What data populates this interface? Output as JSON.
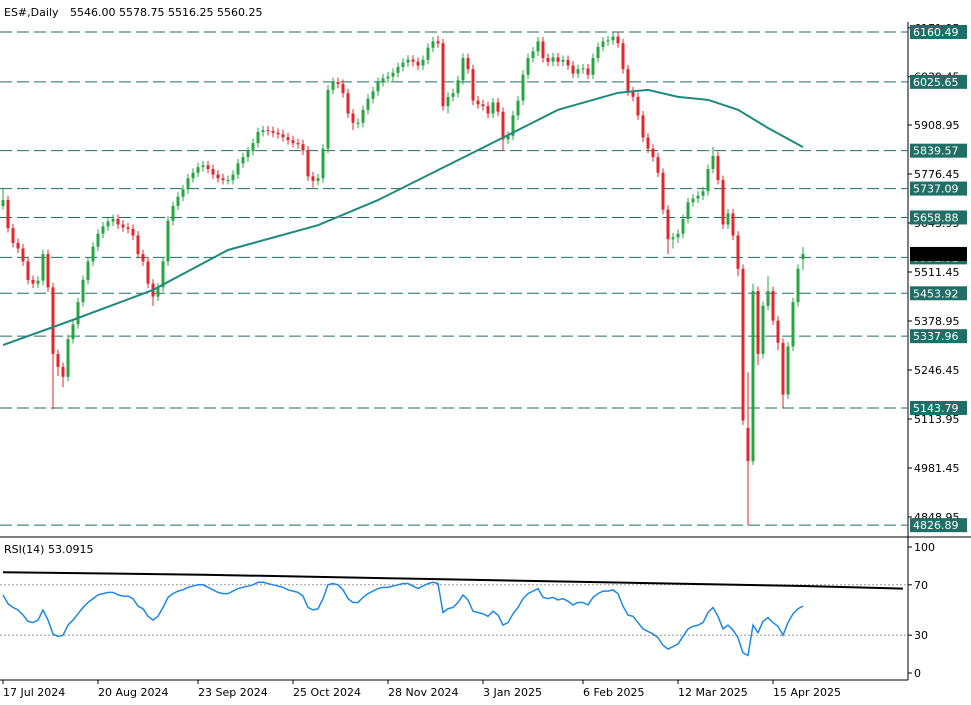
{
  "chart_data": {
    "type": "candlestick",
    "title": "ES#,Daily",
    "header_labels": [
      "5546.00",
      "5578.75",
      "5516.25",
      "5560.25"
    ],
    "categories": [
      "17 Jul 2024",
      null,
      null,
      null,
      null,
      null,
      null,
      null,
      null,
      null,
      null,
      null,
      null,
      null,
      null,
      null,
      null,
      null,
      null,
      "20 Aug 2024",
      null,
      null,
      null,
      null,
      null,
      null,
      null,
      null,
      null,
      null,
      null,
      null,
      null,
      null,
      null,
      null,
      null,
      null,
      null,
      "23 Sep 2024",
      null,
      null,
      null,
      null,
      null,
      null,
      null,
      null,
      null,
      null,
      null,
      null,
      null,
      null,
      null,
      null,
      null,
      null,
      "25 Oct 2024",
      null,
      null,
      null,
      null,
      null,
      null,
      null,
      null,
      null,
      null,
      null,
      null,
      null,
      null,
      null,
      null,
      null,
      null,
      "28 Nov 2024",
      null,
      null,
      null,
      null,
      null,
      null,
      null,
      null,
      null,
      null,
      null,
      null,
      null,
      null,
      null,
      null,
      null,
      null,
      "3 Jan 2025",
      null,
      null,
      null,
      null,
      null,
      null,
      null,
      null,
      null,
      null,
      null,
      null,
      null,
      null,
      null,
      null,
      null,
      null,
      null,
      "6 Feb 2025",
      null,
      null,
      null,
      null,
      null,
      null,
      null,
      null,
      null,
      null,
      null,
      null,
      null,
      null,
      null,
      null,
      null,
      null,
      "12 Mar 2025",
      null,
      null,
      null,
      null,
      null,
      null,
      null,
      null,
      null,
      null,
      null,
      null,
      null,
      null,
      null,
      null,
      null,
      null,
      "15 Apr 2025",
      null,
      null,
      null,
      null,
      null,
      null
    ],
    "candles": [
      [
        5690,
        5740,
        5680,
        5706
      ],
      [
        5706,
        5718,
        5618,
        5630
      ],
      [
        5630,
        5642,
        5578,
        5590
      ],
      [
        5590,
        5602,
        5563,
        5575
      ],
      [
        5575,
        5587,
        5528,
        5540
      ],
      [
        5540,
        5552,
        5478,
        5490
      ],
      [
        5490,
        5502,
        5468,
        5480
      ],
      [
        5480,
        5500,
        5468,
        5488
      ],
      [
        5488,
        5572,
        5476,
        5560
      ],
      [
        5560,
        5572,
        5458,
        5470
      ],
      [
        5470,
        5482,
        5140,
        5290
      ],
      [
        5290,
        5302,
        5230,
        5255
      ],
      [
        5255,
        5267,
        5200,
        5228
      ],
      [
        5228,
        5342,
        5216,
        5330
      ],
      [
        5330,
        5382,
        5318,
        5370
      ],
      [
        5370,
        5442,
        5358,
        5430
      ],
      [
        5430,
        5502,
        5418,
        5490
      ],
      [
        5490,
        5552,
        5478,
        5540
      ],
      [
        5540,
        5592,
        5528,
        5580
      ],
      [
        5580,
        5627,
        5568,
        5615
      ],
      [
        5615,
        5647,
        5603,
        5635
      ],
      [
        5635,
        5660,
        5623,
        5648
      ],
      [
        5648,
        5667,
        5636,
        5655
      ],
      [
        5655,
        5667,
        5628,
        5640
      ],
      [
        5640,
        5652,
        5620,
        5632
      ],
      [
        5632,
        5644,
        5616,
        5628
      ],
      [
        5628,
        5640,
        5598,
        5610
      ],
      [
        5610,
        5622,
        5548,
        5560
      ],
      [
        5560,
        5572,
        5528,
        5540
      ],
      [
        5540,
        5552,
        5468,
        5480
      ],
      [
        5480,
        5492,
        5420,
        5445
      ],
      [
        5445,
        5482,
        5433,
        5470
      ],
      [
        5470,
        5552,
        5458,
        5540
      ],
      [
        5540,
        5662,
        5528,
        5650
      ],
      [
        5650,
        5702,
        5638,
        5690
      ],
      [
        5690,
        5727,
        5678,
        5715
      ],
      [
        5715,
        5747,
        5703,
        5735
      ],
      [
        5735,
        5777,
        5723,
        5765
      ],
      [
        5765,
        5792,
        5753,
        5780
      ],
      [
        5780,
        5807,
        5768,
        5795
      ],
      [
        5795,
        5812,
        5783,
        5800
      ],
      [
        5800,
        5812,
        5778,
        5790
      ],
      [
        5790,
        5802,
        5763,
        5775
      ],
      [
        5775,
        5787,
        5753,
        5765
      ],
      [
        5765,
        5777,
        5748,
        5760
      ],
      [
        5758,
        5772,
        5748,
        5760
      ],
      [
        5760,
        5787,
        5748,
        5775
      ],
      [
        5775,
        5817,
        5763,
        5805
      ],
      [
        5805,
        5834,
        5793,
        5822
      ],
      [
        5822,
        5850,
        5810,
        5838
      ],
      [
        5838,
        5872,
        5826,
        5860
      ],
      [
        5860,
        5902,
        5848,
        5890
      ],
      [
        5890,
        5907,
        5878,
        5895
      ],
      [
        5895,
        5907,
        5881,
        5893
      ],
      [
        5893,
        5905,
        5876,
        5888
      ],
      [
        5888,
        5900,
        5872,
        5884
      ],
      [
        5884,
        5896,
        5864,
        5876
      ],
      [
        5876,
        5888,
        5856,
        5868
      ],
      [
        5868,
        5880,
        5848,
        5860
      ],
      [
        5860,
        5872,
        5845,
        5857
      ],
      [
        5857,
        5869,
        5828,
        5840
      ],
      [
        5840,
        5852,
        5758,
        5770
      ],
      [
        5770,
        5782,
        5740,
        5758
      ],
      [
        5758,
        5777,
        5746,
        5765
      ],
      [
        5765,
        5857,
        5753,
        5845
      ],
      [
        5845,
        6016,
        5833,
        6004
      ],
      [
        6004,
        6037,
        5992,
        6025
      ],
      [
        6025,
        6037,
        6008,
        6020
      ],
      [
        6020,
        6032,
        5983,
        5995
      ],
      [
        5995,
        6007,
        5928,
        5940
      ],
      [
        5940,
        5952,
        5895,
        5915
      ],
      [
        5912,
        5927,
        5900,
        5915
      ],
      [
        5915,
        5962,
        5903,
        5950
      ],
      [
        5950,
        5992,
        5938,
        5980
      ],
      [
        5980,
        6012,
        5968,
        6000
      ],
      [
        6000,
        6037,
        5988,
        6025
      ],
      [
        6025,
        6047,
        6013,
        6035
      ],
      [
        6035,
        6052,
        6023,
        6040
      ],
      [
        6040,
        6062,
        6028,
        6050
      ],
      [
        6050,
        6078,
        6038,
        6066
      ],
      [
        6066,
        6090,
        6054,
        6078
      ],
      [
        6078,
        6098,
        6066,
        6086
      ],
      [
        6086,
        6098,
        6068,
        6080
      ],
      [
        6080,
        6092,
        6058,
        6070
      ],
      [
        6070,
        6097,
        6058,
        6085
      ],
      [
        6085,
        6130,
        6073,
        6118
      ],
      [
        6118,
        6147,
        6106,
        6135
      ],
      [
        6135,
        6150,
        6118,
        6130
      ],
      [
        6130,
        6142,
        5948,
        5960
      ],
      [
        5960,
        5997,
        5940,
        5985
      ],
      [
        5985,
        6007,
        5973,
        5995
      ],
      [
        5995,
        6042,
        5983,
        6030
      ],
      [
        6030,
        6102,
        6018,
        6090
      ],
      [
        6090,
        6102,
        6048,
        6060
      ],
      [
        6060,
        6072,
        5963,
        5975
      ],
      [
        5975,
        5987,
        5953,
        5965
      ],
      [
        5965,
        5977,
        5948,
        5960
      ],
      [
        5960,
        5972,
        5928,
        5940
      ],
      [
        5940,
        5982,
        5928,
        5970
      ],
      [
        5970,
        5982,
        5933,
        5945
      ],
      [
        5945,
        5957,
        5840,
        5870
      ],
      [
        5870,
        5892,
        5858,
        5880
      ],
      [
        5880,
        5947,
        5868,
        5935
      ],
      [
        5935,
        5987,
        5923,
        5975
      ],
      [
        5975,
        6057,
        5963,
        6045
      ],
      [
        6045,
        6102,
        6033,
        6090
      ],
      [
        6090,
        6120,
        6078,
        6108
      ],
      [
        6108,
        6147,
        6096,
        6135
      ],
      [
        6135,
        6147,
        6078,
        6090
      ],
      [
        6090,
        6102,
        6068,
        6080
      ],
      [
        6080,
        6104,
        6068,
        6092
      ],
      [
        6092,
        6104,
        6068,
        6080
      ],
      [
        6080,
        6097,
        6068,
        6085
      ],
      [
        6085,
        6097,
        6058,
        6070
      ],
      [
        6070,
        6082,
        6036,
        6048
      ],
      [
        6048,
        6072,
        6036,
        6060
      ],
      [
        6060,
        6074,
        6048,
        6062
      ],
      [
        6062,
        6074,
        6033,
        6045
      ],
      [
        6045,
        6102,
        6033,
        6090
      ],
      [
        6090,
        6132,
        6078,
        6120
      ],
      [
        6120,
        6147,
        6108,
        6135
      ],
      [
        6135,
        6150,
        6123,
        6138
      ],
      [
        6138,
        6160,
        6126,
        6148
      ],
      [
        6148,
        6160,
        6118,
        6130
      ],
      [
        6130,
        6142,
        6048,
        6060
      ],
      [
        6060,
        6072,
        5988,
        6000
      ],
      [
        6000,
        6012,
        5973,
        5985
      ],
      [
        5985,
        5997,
        5923,
        5935
      ],
      [
        5935,
        5947,
        5863,
        5875
      ],
      [
        5875,
        5887,
        5833,
        5845
      ],
      [
        5845,
        5857,
        5810,
        5822
      ],
      [
        5822,
        5834,
        5768,
        5780
      ],
      [
        5780,
        5792,
        5668,
        5680
      ],
      [
        5680,
        5692,
        5560,
        5600
      ],
      [
        5600,
        5617,
        5575,
        5605
      ],
      [
        5605,
        5627,
        5590,
        5615
      ],
      [
        5615,
        5667,
        5603,
        5655
      ],
      [
        5655,
        5712,
        5643,
        5700
      ],
      [
        5700,
        5722,
        5688,
        5710
      ],
      [
        5710,
        5730,
        5698,
        5718
      ],
      [
        5718,
        5742,
        5706,
        5730
      ],
      [
        5730,
        5802,
        5718,
        5790
      ],
      [
        5790,
        5850,
        5778,
        5825
      ],
      [
        5825,
        5837,
        5748,
        5760
      ],
      [
        5760,
        5772,
        5628,
        5640
      ],
      [
        5640,
        5682,
        5628,
        5670
      ],
      [
        5670,
        5682,
        5598,
        5610
      ],
      [
        5610,
        5622,
        5500,
        5520
      ],
      [
        5520,
        5532,
        5098,
        5110
      ],
      [
        5090,
        5240,
        4827,
        5000
      ],
      [
        5000,
        5480,
        4990,
        5460
      ],
      [
        5460,
        5472,
        5260,
        5290
      ],
      [
        5290,
        5432,
        5278,
        5420
      ],
      [
        5420,
        5500,
        5408,
        5460
      ],
      [
        5460,
        5472,
        5368,
        5380
      ],
      [
        5380,
        5392,
        5300,
        5320
      ],
      [
        5320,
        5332,
        5143,
        5180
      ],
      [
        5180,
        5322,
        5168,
        5310
      ],
      [
        5310,
        5442,
        5298,
        5430
      ],
      [
        5430,
        5532,
        5418,
        5520
      ],
      [
        5546,
        5578.75,
        5516.25,
        5560.25
      ]
    ],
    "up_color": "#26a641",
    "down_color": "#e3262b",
    "ylim": [
      4813.8,
      6187.5
    ],
    "yticks": [
      6171.95,
      6039.45,
      5908.95,
      5776.45,
      5643.95,
      5511.45,
      5378.95,
      5246.45,
      5113.95,
      4981.45,
      4848.95
    ],
    "levels": [
      6160.49,
      6025.65,
      5839.57,
      5737.09,
      5658.88,
      5551.01,
      5453.92,
      5337.96,
      5143.79,
      4826.89
    ],
    "level_color": "#1f6f66",
    "ma": {
      "color": "#1d8a80",
      "x": [
        0,
        14,
        30,
        45,
        63,
        75,
        87,
        99,
        111,
        123,
        129,
        135,
        141,
        147,
        153,
        160
      ],
      "values": [
        5314,
        5382,
        5463,
        5571,
        5638,
        5706,
        5787,
        5868,
        5950,
        5996,
        6004,
        5985,
        5977,
        5950,
        5901,
        5849
      ]
    },
    "rsi": {
      "title": "RSI(14)",
      "value": 53.0915,
      "color": "#1e88e5",
      "ylim": [
        0,
        100
      ],
      "yticks": [
        0,
        30,
        70,
        100
      ],
      "levels": [
        30,
        70
      ],
      "values": [
        62,
        55,
        52,
        50,
        46,
        41,
        40,
        42,
        50,
        42,
        31,
        29,
        30,
        38,
        42,
        47,
        52,
        56,
        59,
        62,
        63,
        64,
        64,
        62,
        61,
        61,
        59,
        53,
        51,
        45,
        42,
        45,
        52,
        60,
        63,
        65,
        66,
        68,
        69,
        70,
        70,
        68,
        66,
        64,
        63,
        63,
        65,
        67,
        68,
        69,
        70,
        72,
        72,
        71,
        70,
        69,
        68,
        66,
        65,
        64,
        61,
        52,
        50,
        51,
        59,
        70,
        71,
        70,
        66,
        59,
        56,
        56,
        60,
        63,
        65,
        67,
        68,
        68,
        69,
        70,
        71,
        71,
        69,
        67,
        69,
        71,
        72,
        71,
        48,
        51,
        52,
        56,
        62,
        58,
        49,
        48,
        47,
        45,
        49,
        46,
        38,
        40,
        47,
        52,
        59,
        63,
        65,
        67,
        60,
        59,
        60,
        58,
        59,
        57,
        54,
        56,
        56,
        54,
        60,
        63,
        65,
        65,
        66,
        63,
        53,
        46,
        45,
        40,
        35,
        33,
        31,
        28,
        22,
        19,
        21,
        23,
        29,
        35,
        37,
        38,
        40,
        48,
        52,
        45,
        35,
        38,
        34,
        28,
        16,
        14,
        38,
        32,
        41,
        44,
        40,
        37,
        30,
        40,
        47,
        51,
        53.0915
      ],
      "signal": {
        "color": "#000000",
        "x": [
          0,
          40,
          80,
          120,
          160,
          180
        ],
        "values": [
          80,
          78,
          75,
          72,
          69,
          67
        ]
      }
    }
  }
}
